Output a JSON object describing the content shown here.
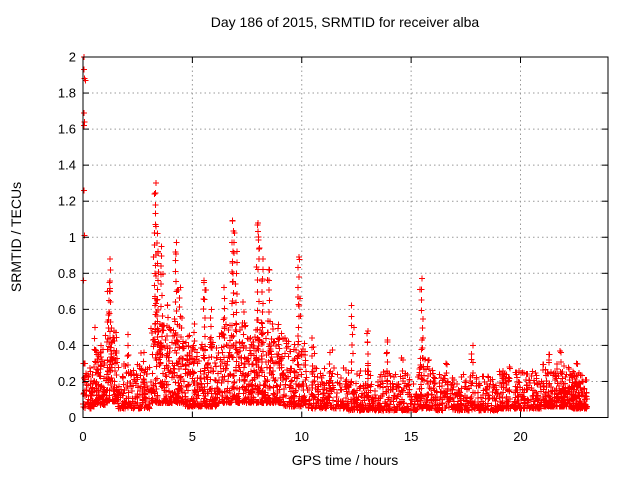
{
  "window": {
    "background_color": "#ffffff"
  },
  "chart_data": {
    "type": "scatter",
    "title": "Day 186 of 2015, SRMTID for receiver alba",
    "xlabel": "GPS time / hours",
    "ylabel": "SRMTID / TECUs",
    "xlim": [
      0,
      24
    ],
    "ylim": [
      0,
      2
    ],
    "xticks": [
      0,
      5,
      10,
      15,
      20
    ],
    "xtick_labels": [
      "0",
      "5",
      "10",
      "15",
      "20"
    ],
    "yticks": [
      0,
      0.2,
      0.4,
      0.6,
      0.8,
      1,
      1.2,
      1.4,
      1.6,
      1.8,
      2
    ],
    "ytick_labels": [
      "0",
      "0.2",
      "0.4",
      "0.6",
      "0.8",
      "1",
      "1.2",
      "1.4",
      "1.6",
      "1.8",
      "2"
    ],
    "grid": "dotted",
    "grid_color": "#999999",
    "frame_color": "#000000",
    "marker": "plus",
    "marker_color": "#ff0000",
    "marker_size": 7,
    "legend": "none",
    "data_x_end_hour": 23.05,
    "outlier_points": [
      [
        0.05,
        2.0
      ],
      [
        0.05,
        1.93
      ],
      [
        0.07,
        1.88
      ],
      [
        0.12,
        1.87
      ],
      [
        0.05,
        1.69
      ],
      [
        0.07,
        1.64
      ],
      [
        0.05,
        1.62
      ],
      [
        0.05,
        1.26
      ],
      [
        0.07,
        1.01
      ],
      [
        0.03,
        0.76
      ],
      [
        0.05,
        0.3
      ],
      [
        0.05,
        0.22
      ],
      [
        0.08,
        0.15
      ],
      [
        0.1,
        0.12
      ]
    ],
    "spike_columns": [
      {
        "x": 0.55,
        "top": 0.5,
        "bottom": 0.14
      },
      {
        "x": 0.8,
        "top": 0.4,
        "bottom": 0.12
      },
      {
        "x": 1.15,
        "top": 0.7,
        "bottom": 0.18
      },
      {
        "x": 1.25,
        "top": 0.88,
        "bottom": 0.22
      },
      {
        "x": 1.45,
        "top": 0.48,
        "bottom": 0.15
      },
      {
        "x": 2.05,
        "top": 0.46,
        "bottom": 0.12
      },
      {
        "x": 2.75,
        "top": 0.36,
        "bottom": 0.1
      },
      {
        "x": 3.3,
        "top": 1.3,
        "bottom": 0.4
      },
      {
        "x": 3.42,
        "top": 1.02,
        "bottom": 0.35
      },
      {
        "x": 3.6,
        "top": 0.95,
        "bottom": 0.3
      },
      {
        "x": 3.85,
        "top": 0.62,
        "bottom": 0.22
      },
      {
        "x": 4.25,
        "top": 0.97,
        "bottom": 0.25
      },
      {
        "x": 4.45,
        "top": 0.72,
        "bottom": 0.2
      },
      {
        "x": 4.8,
        "top": 0.45,
        "bottom": 0.15
      },
      {
        "x": 5.1,
        "top": 0.52,
        "bottom": 0.15
      },
      {
        "x": 5.55,
        "top": 0.76,
        "bottom": 0.18
      },
      {
        "x": 5.85,
        "top": 0.6,
        "bottom": 0.15
      },
      {
        "x": 6.45,
        "top": 0.72,
        "bottom": 0.2
      },
      {
        "x": 6.85,
        "top": 1.09,
        "bottom": 0.3
      },
      {
        "x": 7.0,
        "top": 0.92,
        "bottom": 0.25
      },
      {
        "x": 7.35,
        "top": 0.64,
        "bottom": 0.2
      },
      {
        "x": 8.0,
        "top": 1.08,
        "bottom": 0.28
      },
      {
        "x": 8.2,
        "top": 0.88,
        "bottom": 0.22
      },
      {
        "x": 8.5,
        "top": 0.82,
        "bottom": 0.2
      },
      {
        "x": 9.0,
        "top": 0.44,
        "bottom": 0.12
      },
      {
        "x": 9.85,
        "top": 0.89,
        "bottom": 0.15
      },
      {
        "x": 10.5,
        "top": 0.44,
        "bottom": 0.12
      },
      {
        "x": 11.3,
        "top": 0.36,
        "bottom": 0.1
      },
      {
        "x": 12.3,
        "top": 0.62,
        "bottom": 0.12
      },
      {
        "x": 13.0,
        "top": 0.48,
        "bottom": 0.1
      },
      {
        "x": 13.9,
        "top": 0.42,
        "bottom": 0.1
      },
      {
        "x": 14.6,
        "top": 0.32,
        "bottom": 0.1
      },
      {
        "x": 15.5,
        "top": 0.77,
        "bottom": 0.1
      },
      {
        "x": 16.6,
        "top": 0.3,
        "bottom": 0.08
      },
      {
        "x": 17.8,
        "top": 0.4,
        "bottom": 0.08
      },
      {
        "x": 19.5,
        "top": 0.28,
        "bottom": 0.08
      },
      {
        "x": 21.3,
        "top": 0.35,
        "bottom": 0.1
      },
      {
        "x": 21.85,
        "top": 0.36,
        "bottom": 0.1
      },
      {
        "x": 22.6,
        "top": 0.3,
        "bottom": 0.08
      }
    ],
    "baseline_band": {
      "seed": 186,
      "bias_exponent": 2.2,
      "segments": [
        {
          "x0": 0.0,
          "x1": 0.5,
          "n": 55,
          "ylo": 0.05,
          "yhi": 0.3
        },
        {
          "x0": 0.5,
          "x1": 1.0,
          "n": 70,
          "ylo": 0.07,
          "yhi": 0.38
        },
        {
          "x0": 1.0,
          "x1": 1.6,
          "n": 85,
          "ylo": 0.09,
          "yhi": 0.5
        },
        {
          "x0": 1.6,
          "x1": 3.1,
          "n": 150,
          "ylo": 0.05,
          "yhi": 0.3
        },
        {
          "x0": 3.1,
          "x1": 4.6,
          "n": 220,
          "ylo": 0.08,
          "yhi": 0.52
        },
        {
          "x0": 4.6,
          "x1": 6.2,
          "n": 200,
          "ylo": 0.06,
          "yhi": 0.42
        },
        {
          "x0": 6.2,
          "x1": 9.1,
          "n": 380,
          "ylo": 0.08,
          "yhi": 0.52
        },
        {
          "x0": 9.1,
          "x1": 10.2,
          "n": 130,
          "ylo": 0.06,
          "yhi": 0.45
        },
        {
          "x0": 10.2,
          "x1": 12.1,
          "n": 160,
          "ylo": 0.05,
          "yhi": 0.28
        },
        {
          "x0": 12.1,
          "x1": 15.3,
          "n": 300,
          "ylo": 0.04,
          "yhi": 0.26
        },
        {
          "x0": 15.3,
          "x1": 16.1,
          "n": 90,
          "ylo": 0.05,
          "yhi": 0.33
        },
        {
          "x0": 16.1,
          "x1": 19.0,
          "n": 280,
          "ylo": 0.04,
          "yhi": 0.24
        },
        {
          "x0": 19.0,
          "x1": 21.0,
          "n": 210,
          "ylo": 0.05,
          "yhi": 0.26
        },
        {
          "x0": 21.0,
          "x1": 22.3,
          "n": 170,
          "ylo": 0.06,
          "yhi": 0.3
        },
        {
          "x0": 22.3,
          "x1": 23.05,
          "n": 115,
          "ylo": 0.05,
          "yhi": 0.26
        }
      ]
    }
  }
}
